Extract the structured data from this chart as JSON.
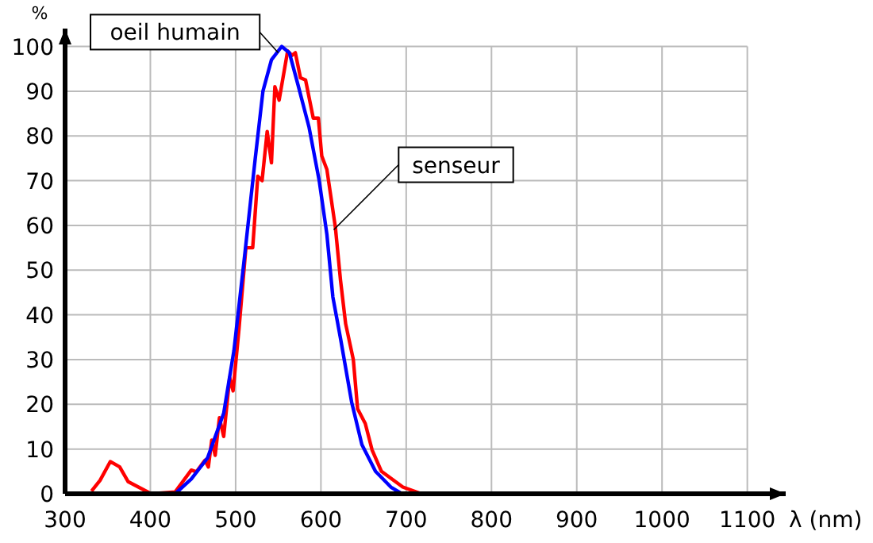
{
  "chart_data": {
    "type": "line",
    "xlabel": "λ (nm)",
    "ylabel": "%",
    "xlim": [
      300,
      1145
    ],
    "ylim": [
      0,
      104
    ],
    "xticks": [
      300,
      400,
      500,
      600,
      700,
      800,
      900,
      1000,
      1100
    ],
    "yticks": [
      0,
      10,
      20,
      30,
      40,
      50,
      60,
      70,
      80,
      90,
      100
    ],
    "grid": true,
    "line_style": "solid",
    "series": [
      {
        "color": "#ff0000",
        "x": [
          331,
          341,
          353,
          364,
          374,
          401,
          429,
          448,
          454,
          464,
          468,
          472,
          476,
          481,
          486,
          493,
          497,
          504,
          512,
          520,
          526,
          531,
          537,
          542,
          546,
          551,
          561,
          566,
          570,
          576,
          582,
          591,
          597,
          601,
          607,
          617,
          623,
          629,
          638,
          643,
          652,
          660,
          671,
          696,
          718
        ],
        "values": [
          0.6,
          3,
          7.2,
          6,
          2.7,
          0,
          0.4,
          5.3,
          4.9,
          7.5,
          6,
          12,
          8.6,
          17,
          12.8,
          26,
          23,
          37,
          55,
          55,
          71,
          70,
          81,
          74,
          91,
          88,
          99,
          98,
          98.6,
          93,
          92.5,
          84,
          84,
          75.5,
          72.5,
          59.5,
          47.7,
          38,
          30,
          19,
          15.7,
          9.8,
          5,
          1.5,
          0
        ]
      },
      {
        "color": "#0000ff",
        "x": [
          429,
          448,
          467,
          486,
          498,
          511,
          523,
          532,
          542,
          554,
          563,
          573,
          586,
          598,
          607,
          614,
          623,
          636,
          648,
          664,
          682,
          695
        ],
        "values": [
          0,
          3.3,
          8,
          18,
          32,
          54,
          75,
          90,
          97,
          100,
          98.6,
          91.5,
          82,
          70,
          58,
          44,
          34.7,
          20.5,
          11,
          5,
          1.5,
          0
        ]
      }
    ],
    "annotations": [
      {
        "text": "oeil humain",
        "x": 550,
        "y": 98.6
      },
      {
        "text": "senseur",
        "x": 615,
        "y": 59
      }
    ]
  }
}
